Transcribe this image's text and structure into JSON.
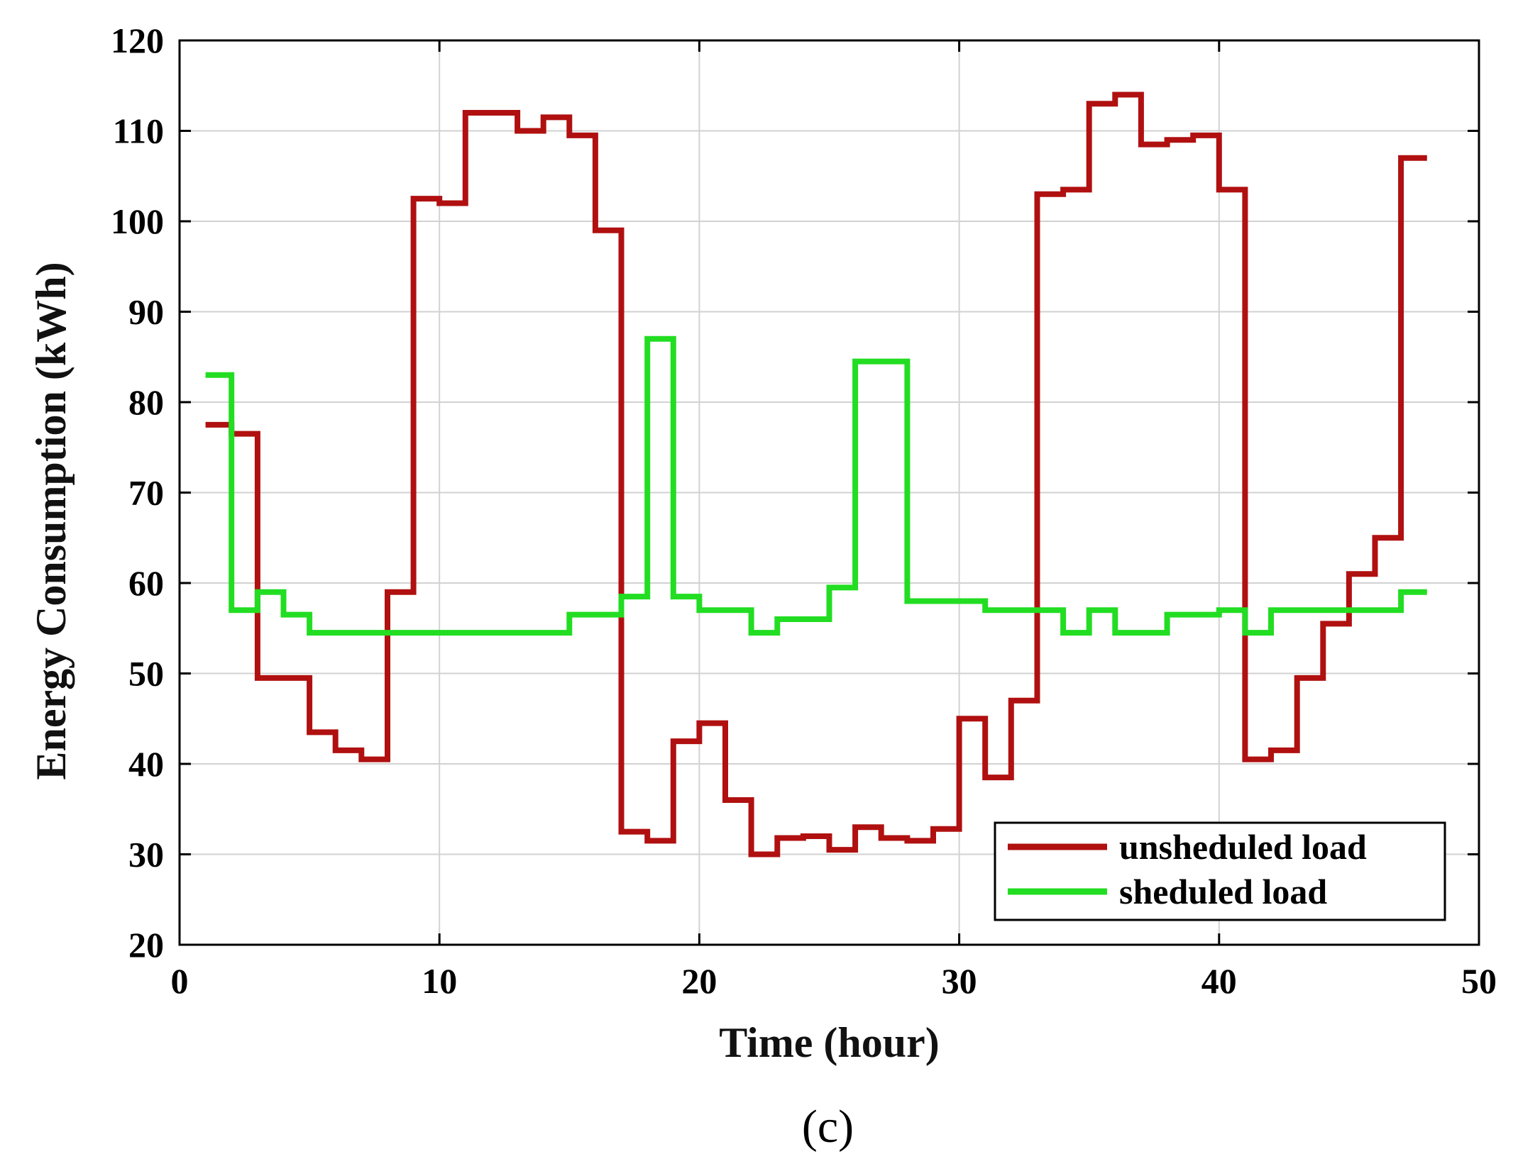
{
  "chart_data": {
    "type": "line",
    "step": "post",
    "xlabel": "Time (hour)",
    "ylabel": "Energy Consumption (kWh)",
    "caption": "(c)",
    "xlim": [
      0,
      50
    ],
    "ylim": [
      20,
      120
    ],
    "xticks": [
      0,
      10,
      20,
      30,
      40,
      50
    ],
    "yticks": [
      20,
      30,
      40,
      50,
      60,
      70,
      80,
      90,
      100,
      110,
      120
    ],
    "grid": true,
    "legend_position": "bottom-right",
    "x": [
      1,
      2,
      3,
      4,
      5,
      6,
      7,
      8,
      9,
      10,
      11,
      12,
      13,
      14,
      15,
      16,
      17,
      18,
      19,
      20,
      21,
      22,
      23,
      24,
      25,
      26,
      27,
      28,
      29,
      30,
      31,
      32,
      33,
      34,
      35,
      36,
      37,
      38,
      39,
      40,
      41,
      42,
      43,
      44,
      45,
      46,
      47,
      48
    ],
    "series": [
      {
        "name": "unsheduled load",
        "color": "#b01010",
        "values": [
          77.5,
          76.5,
          49.5,
          49.5,
          43.5,
          41.5,
          40.5,
          59,
          102.5,
          102,
          112,
          112,
          110,
          111.5,
          109.5,
          99,
          32.5,
          31.5,
          42.5,
          44.5,
          36,
          30,
          31.8,
          32,
          30.5,
          33,
          31.8,
          31.5,
          32.8,
          45,
          38.5,
          47,
          103,
          103.5,
          113,
          114,
          108.5,
          109,
          109.5,
          103.5,
          40.5,
          41.5,
          49.5,
          55.5,
          61,
          65,
          107,
          107
        ]
      },
      {
        "name": "sheduled load",
        "color": "#22dd22",
        "values": [
          83,
          57,
          59,
          56.5,
          54.5,
          54.5,
          54.5,
          54.5,
          54.5,
          54.5,
          54.5,
          54.5,
          54.5,
          54.5,
          56.5,
          56.5,
          58.5,
          87,
          58.5,
          57,
          57,
          54.5,
          56,
          56,
          59.5,
          84.5,
          84.5,
          58,
          58,
          58,
          57,
          57,
          57,
          54.5,
          57,
          54.5,
          54.5,
          56.5,
          56.5,
          57,
          54.5,
          57,
          57,
          57,
          57,
          57,
          59,
          59
        ]
      }
    ]
  }
}
